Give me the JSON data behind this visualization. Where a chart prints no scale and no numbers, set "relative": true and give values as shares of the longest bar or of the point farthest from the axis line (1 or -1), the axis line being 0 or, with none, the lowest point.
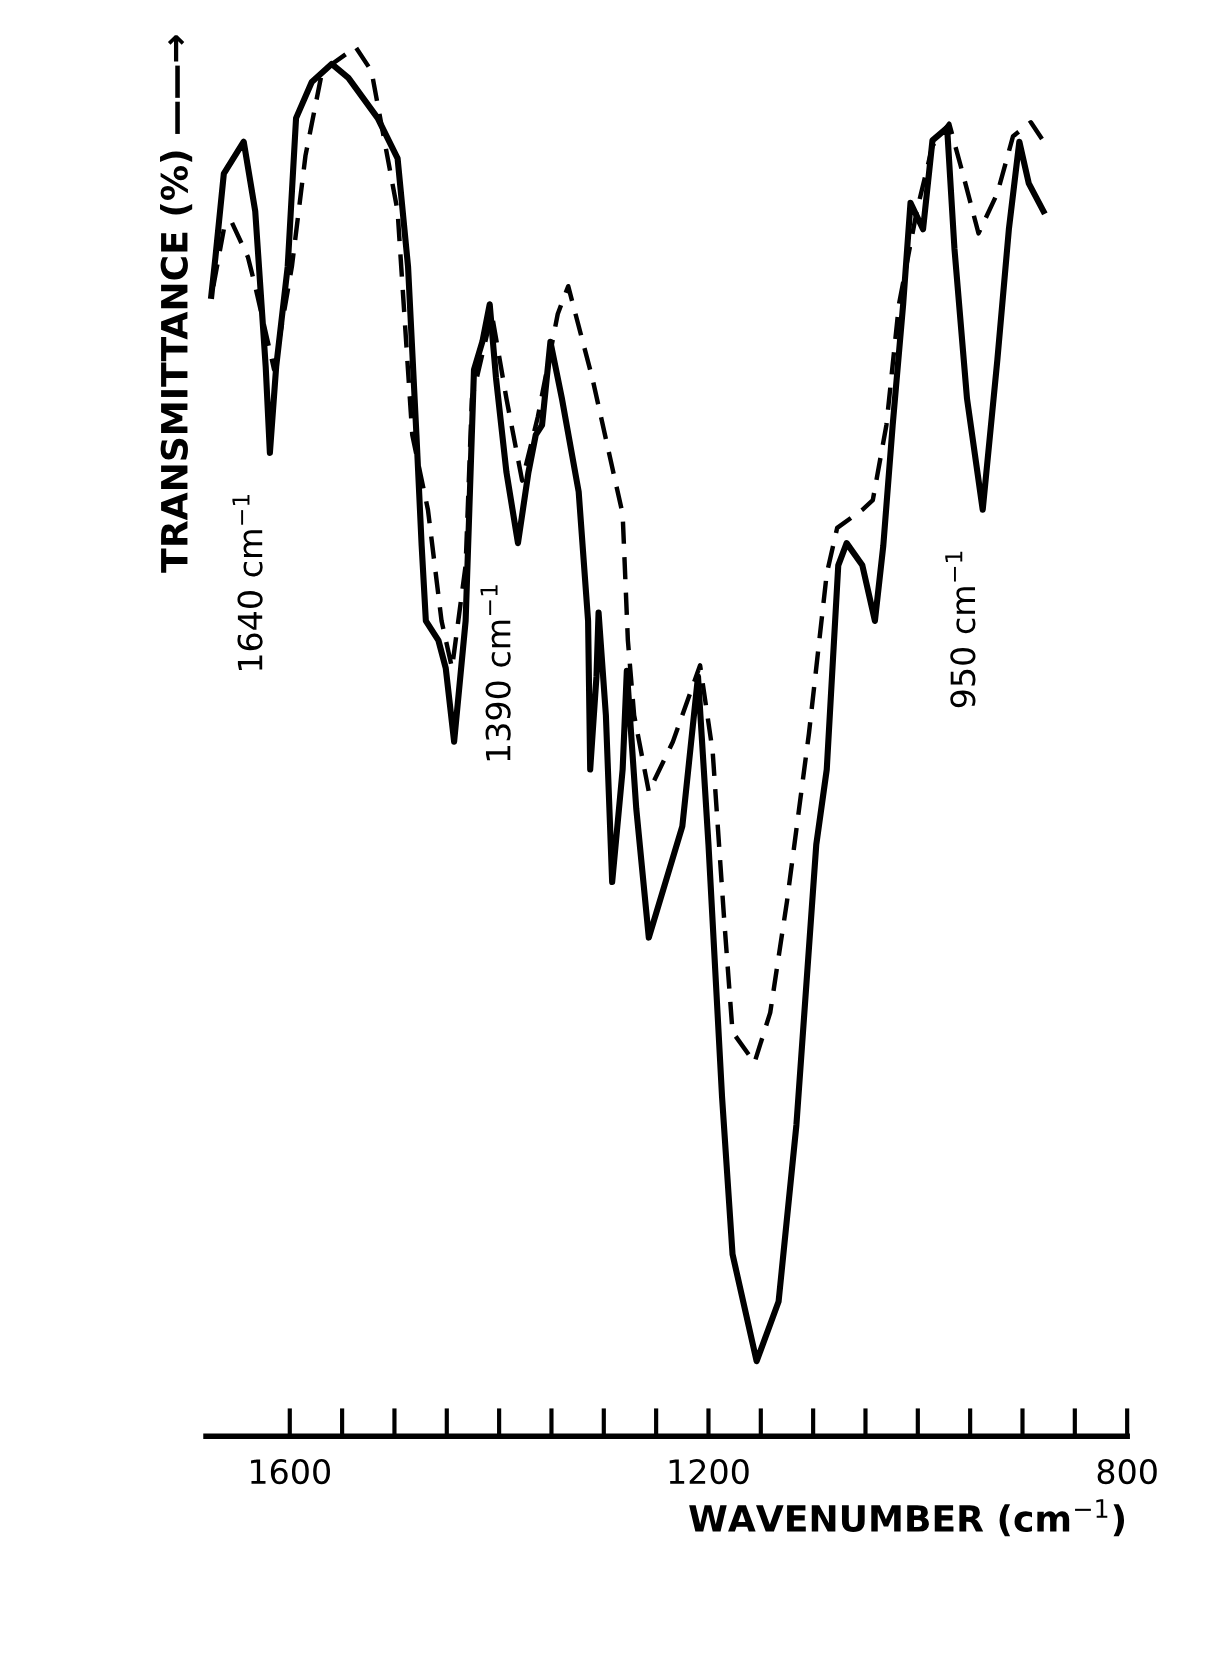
{
  "chart_data": {
    "type": "line",
    "relative": true,
    "xlabel": "WAVENUMBER (cm$^{−1}$)",
    "ylabel": "TRANSMITTANCE (%) ——→",
    "xlim": [
      1680,
      800
    ],
    "xticks": [
      1600,
      {
        "value": 1550,
        "label": null
      },
      {
        "value": 1500,
        "label": null
      },
      {
        "value": 1450,
        "label": null
      },
      {
        "value": 1400,
        "label": null
      },
      {
        "value": 1350,
        "label": null
      },
      {
        "value": 1300,
        "label": null
      },
      {
        "value": 1250,
        "label": null
      },
      1200,
      {
        "value": 1150,
        "label": null
      },
      {
        "value": 1100,
        "label": null
      },
      {
        "value": 1050,
        "label": null
      },
      {
        "value": 1000,
        "label": null
      },
      {
        "value": 950,
        "label": null
      },
      {
        "value": 900,
        "label": null
      },
      {
        "value": 850,
        "label": null
      },
      800
    ],
    "grid": false,
    "legend": false,
    "marker": "none",
    "series": [
      {
        "color": "#000000",
        "line_style": "solid",
        "x": [
          1675,
          1671,
          1663,
          1644,
          1633,
          1623,
          1619,
          1613,
          1602,
          1594,
          1579,
          1560,
          1544,
          1516,
          1497,
          1487,
          1479,
          1474,
          1470,
          1458,
          1451,
          1443,
          1432,
          1424,
          1416,
          1409,
          1403,
          1393,
          1382,
          1372,
          1365,
          1359,
          1351,
          1340,
          1324,
          1315,
          1313,
          1307,
          1305,
          1298,
          1292,
          1282,
          1278,
          1269,
          1257,
          1225,
          1210,
          1200,
          1187,
          1177,
          1154,
          1133,
          1116,
          1097,
          1087,
          1076,
          1068,
          1053,
          1041,
          1033,
          1024,
          1014,
          1007,
          995,
          986,
          972,
          965,
          953,
          938,
          924,
          913,
          903,
          894,
          880
        ],
        "values": [
          0.821,
          0.849,
          0.909,
          0.932,
          0.882,
          0.77,
          0.708,
          0.77,
          0.842,
          0.949,
          0.975,
          0.988,
          0.978,
          0.949,
          0.92,
          0.842,
          0.721,
          0.641,
          0.587,
          0.573,
          0.553,
          0.5,
          0.587,
          0.768,
          0.788,
          0.815,
          0.762,
          0.694,
          0.643,
          0.694,
          0.721,
          0.728,
          0.788,
          0.747,
          0.68,
          0.587,
          0.48,
          0.547,
          0.593,
          0.519,
          0.399,
          0.48,
          0.551,
          0.452,
          0.359,
          0.439,
          0.547,
          0.426,
          0.244,
          0.131,
          0.054,
          0.097,
          0.224,
          0.426,
          0.48,
          0.627,
          0.643,
          0.627,
          0.587,
          0.641,
          0.728,
          0.815,
          0.888,
          0.869,
          0.933,
          0.942,
          0.855,
          0.747,
          0.667,
          0.775,
          0.869,
          0.932,
          0.902,
          0.882
        ]
      },
      {
        "color": "#000000",
        "line_style": "dashed",
        "x": [
          1673,
          1663,
          1656,
          1640,
          1633,
          1615,
          1598,
          1585,
          1569,
          1537,
          1522,
          1497,
          1483,
          1468,
          1455,
          1445,
          1432,
          1426,
          1407,
          1393,
          1378,
          1363,
          1344,
          1334,
          1311,
          1282,
          1277,
          1271,
          1257,
          1234,
          1208,
          1196,
          1185,
          1177,
          1156,
          1141,
          1125,
          1104,
          1087,
          1077,
          1053,
          1043,
          1030,
          1018,
          1001,
          986,
          970,
          957,
          942,
          924,
          909,
          892,
          877
        ],
        "values": [
          0.828,
          0.869,
          0.875,
          0.849,
          0.828,
          0.768,
          0.842,
          0.922,
          0.983,
          1.0,
          0.983,
          0.882,
          0.721,
          0.667,
          0.587,
          0.553,
          0.627,
          0.747,
          0.808,
          0.747,
          0.688,
          0.734,
          0.808,
          0.828,
          0.762,
          0.664,
          0.573,
          0.519,
          0.464,
          0.5,
          0.555,
          0.493,
          0.372,
          0.291,
          0.269,
          0.305,
          0.385,
          0.506,
          0.621,
          0.654,
          0.667,
          0.674,
          0.728,
          0.815,
          0.882,
          0.929,
          0.945,
          0.909,
          0.866,
          0.895,
          0.936,
          0.946,
          0.929
        ]
      }
    ],
    "annotations": [
      {
        "text": "1640 cm$^{−1}$",
        "x": 1619,
        "y": 0.708
      },
      {
        "text": "1390 cm$^{−1}$",
        "x": 1382,
        "y": 0.643
      },
      {
        "text": "950 cm$^{−1}$",
        "x": 938,
        "y": 0.667
      }
    ]
  }
}
